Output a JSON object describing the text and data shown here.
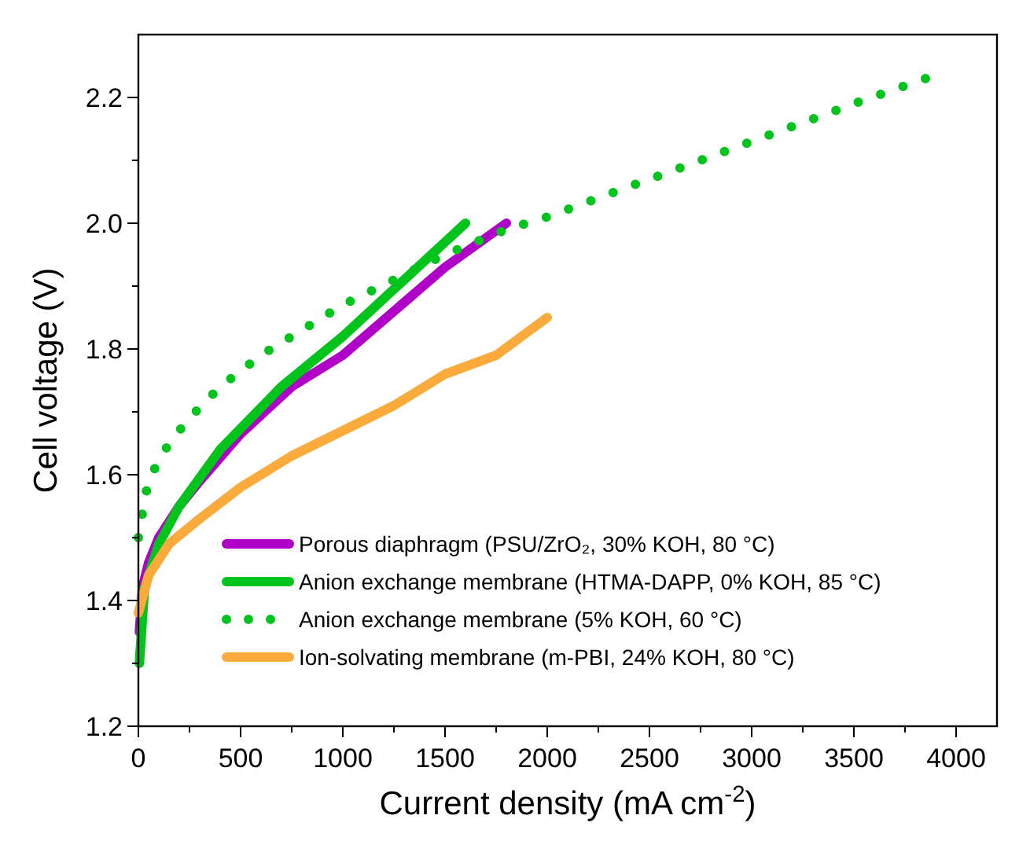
{
  "chart_data": {
    "type": "line",
    "xlabel": "Current density (mA cm$^{-2}$)",
    "ylabel": "Cell voltage (V)",
    "xlim": [
      0,
      4200
    ],
    "ylim": [
      1.2,
      2.3
    ],
    "xticks": [
      0,
      {
        "value": 250,
        "label": null
      },
      500,
      {
        "value": 750,
        "label": null
      },
      1000,
      {
        "value": 1250,
        "label": null
      },
      1500,
      {
        "value": 1750,
        "label": null
      },
      2000,
      {
        "value": 2250,
        "label": null
      },
      2500,
      {
        "value": 2750,
        "label": null
      },
      3000,
      {
        "value": 3250,
        "label": null
      },
      3500,
      {
        "value": 3750,
        "label": null
      },
      4000
    ],
    "yticks": [
      {
        "value": 1.2,
        "label": "1.2"
      },
      {
        "value": 1.3,
        "label": null
      },
      {
        "value": 1.4,
        "label": "1.4"
      },
      {
        "value": 1.5,
        "label": null
      },
      {
        "value": 1.6,
        "label": "1.6"
      },
      {
        "value": 1.7,
        "label": null
      },
      {
        "value": 1.8,
        "label": "1.8"
      },
      {
        "value": 1.9,
        "label": null
      },
      {
        "value": 2.0,
        "label": "2.0"
      },
      {
        "value": 2.1,
        "label": null
      },
      {
        "value": 2.2,
        "label": "2.2"
      }
    ],
    "legend": "bottom right",
    "series": [
      {
        "name": "Porous diaphragm (PSU/ZrO₂, 30% KOH, 80 °C)",
        "color": "#b000c8",
        "line_style": "solid",
        "x": [
          5,
          20,
          50,
          100,
          200,
          300,
          500,
          750,
          1000,
          1250,
          1500,
          1800
        ],
        "values": [
          1.35,
          1.42,
          1.46,
          1.5,
          1.55,
          1.59,
          1.665,
          1.74,
          1.79,
          1.86,
          1.93,
          2.0
        ]
      },
      {
        "name": "Anion exchange membrane (HTMA-DAPP, 0% KOH, 85 °C)",
        "color": "#00c41c",
        "line_style": "solid",
        "x": [
          5,
          15,
          30,
          100,
          200,
          400,
          700,
          1000,
          1300,
          1600
        ],
        "values": [
          1.3,
          1.35,
          1.42,
          1.49,
          1.55,
          1.64,
          1.74,
          1.82,
          1.91,
          2.0
        ]
      },
      {
        "name": "Anion exchange membrane (5% KOH, 60 °C)",
        "color": "#00c41c",
        "line_style": "dotted",
        "x": [
          0,
          20,
          40,
          80,
          150,
          250,
          400,
          600,
          800,
          1000,
          1250,
          1500,
          1800,
          2000,
          2500,
          3000,
          3500,
          3850
        ],
        "values": [
          1.5,
          1.54,
          1.575,
          1.61,
          1.65,
          1.69,
          1.74,
          1.79,
          1.83,
          1.87,
          1.91,
          1.95,
          1.99,
          2.01,
          2.07,
          2.13,
          2.19,
          2.23
        ]
      },
      {
        "name": "Ion-solvating membrane (m-PBI, 24% KOH, 80 °C)",
        "color": "#fbab3c",
        "line_style": "solid",
        "x": [
          0,
          50,
          150,
          300,
          500,
          750,
          1000,
          1250,
          1500,
          1750,
          2000
        ],
        "values": [
          1.38,
          1.44,
          1.49,
          1.53,
          1.58,
          1.63,
          1.67,
          1.71,
          1.76,
          1.79,
          1.85
        ]
      }
    ]
  }
}
